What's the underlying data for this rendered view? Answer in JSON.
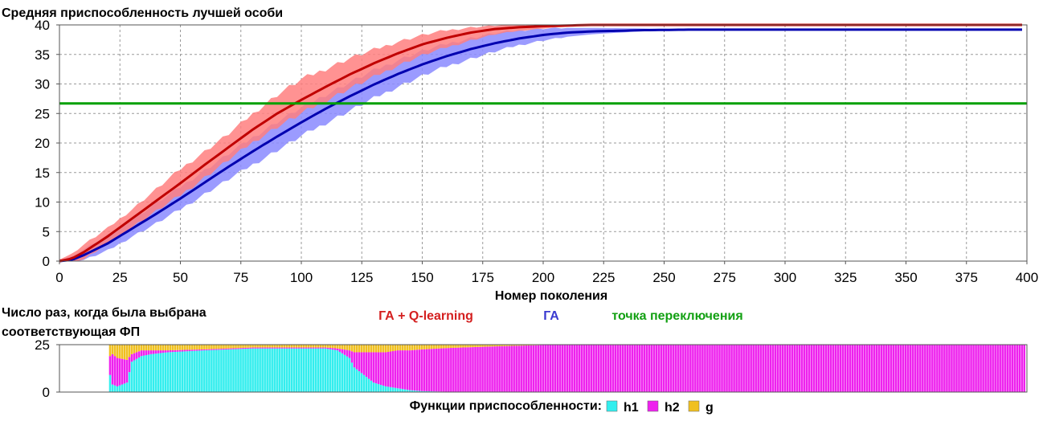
{
  "colors": {
    "ga_q": "#c00000",
    "ga_q_band": "#ff7f7f",
    "ga": "#0000b0",
    "ga_band": "#8a8aff",
    "switch": "#00a000",
    "h1": "#33eeee",
    "h2": "#ee22ee",
    "g": "#f0c020"
  },
  "chart_data": [
    {
      "type": "line",
      "title": "Средняя приспособленность лучшей особи",
      "xlabel": "Номер поколения",
      "ylabel": "",
      "xlim": [
        0,
        400
      ],
      "ylim": [
        0,
        40
      ],
      "x_ticks": [
        0,
        25,
        50,
        75,
        100,
        125,
        150,
        175,
        200,
        225,
        250,
        275,
        300,
        325,
        350,
        375,
        400
      ],
      "y_ticks": [
        0,
        5,
        10,
        15,
        20,
        25,
        30,
        35,
        40
      ],
      "grid": true,
      "series": [
        {
          "name": "ГА + Q-learning",
          "x": [
            0,
            5,
            10,
            20,
            30,
            40,
            50,
            60,
            70,
            80,
            90,
            100,
            110,
            120,
            130,
            140,
            150,
            160,
            170,
            180,
            190,
            200,
            210,
            220,
            240,
            260,
            300,
            400
          ],
          "y": [
            0,
            0.4,
            1.5,
            4.2,
            7.2,
            10.2,
            13.2,
            16.3,
            19.3,
            22.3,
            25.0,
            27.3,
            29.5,
            31.6,
            33.5,
            35.2,
            36.7,
            37.8,
            38.7,
            39.3,
            39.6,
            39.8,
            39.9,
            40.0,
            40.0,
            40.0,
            40.0,
            40.0
          ],
          "band_low": [
            0,
            0,
            0.3,
            3.0,
            5.8,
            8.5,
            11.2,
            14.2,
            17.2,
            20.2,
            22.8,
            25.0,
            27.2,
            29.3,
            31.2,
            33.2,
            34.9,
            36.2,
            37.4,
            38.4,
            39.0,
            39.4,
            39.7,
            39.9,
            40.0,
            40.0,
            40.0,
            40.0
          ],
          "band_high": [
            0.3,
            1.2,
            2.8,
            5.6,
            8.8,
            12.2,
            15.6,
            18.6,
            21.6,
            25.0,
            28.2,
            30.8,
            32.6,
            34.4,
            35.8,
            37.2,
            38.3,
            39.1,
            39.6,
            39.9,
            40.0,
            40.0,
            40.0,
            40.0,
            40.0,
            40.0,
            40.0,
            40.0
          ]
        },
        {
          "name": "ГА",
          "x": [
            0,
            5,
            10,
            20,
            30,
            40,
            50,
            60,
            70,
            80,
            90,
            100,
            110,
            120,
            130,
            140,
            150,
            160,
            170,
            180,
            190,
            200,
            210,
            220,
            240,
            260,
            300,
            400
          ],
          "y": [
            0,
            0.2,
            1.0,
            3.0,
            5.5,
            8.0,
            10.6,
            13.3,
            16.0,
            18.6,
            21.1,
            23.5,
            25.8,
            27.9,
            29.9,
            31.7,
            33.3,
            34.7,
            35.9,
            36.9,
            37.7,
            38.3,
            38.7,
            38.9,
            39.1,
            39.2,
            39.2,
            39.2
          ],
          "band_low": [
            0,
            0,
            0.2,
            1.8,
            4.2,
            6.4,
            8.8,
            11.4,
            13.9,
            16.4,
            18.8,
            21.2,
            23.4,
            25.5,
            27.6,
            29.6,
            31.4,
            33.0,
            34.3,
            35.5,
            36.6,
            37.4,
            38.0,
            38.4,
            38.9,
            39.1,
            39.2,
            39.2
          ],
          "band_high": [
            0.2,
            0.8,
            2.0,
            4.4,
            7.0,
            9.8,
            12.6,
            15.4,
            18.2,
            21.0,
            23.6,
            26.0,
            28.2,
            30.3,
            32.3,
            34.1,
            35.6,
            36.8,
            37.8,
            38.6,
            39.1,
            39.4,
            39.5,
            39.5,
            39.4,
            39.3,
            39.2,
            39.2
          ]
        },
        {
          "name": "точка переключения",
          "x": [
            0,
            400
          ],
          "y": [
            26.7,
            26.7
          ]
        }
      ]
    },
    {
      "type": "bar",
      "stacked": true,
      "title": "Число раз, когда была выбрана соответствующая ФП",
      "title_lines": [
        "Число раз, когда была выбрана",
        "соответствующая ФП"
      ],
      "xlim": [
        0,
        400
      ],
      "ylim": [
        0,
        25
      ],
      "y_ticks": [
        0,
        25
      ],
      "x_start": 21,
      "x_end": 399,
      "legend_title": "Функции приспособленности:",
      "series": [
        {
          "name": "h1",
          "x": [
            21,
            22,
            24,
            28,
            30,
            34,
            38,
            45,
            60,
            80,
            100,
            110,
            115,
            120,
            122,
            125,
            128,
            130,
            135,
            140,
            145,
            150,
            160,
            180,
            200,
            399
          ],
          "values": [
            9,
            4,
            3,
            5,
            16,
            19,
            20,
            21,
            22,
            23,
            23,
            23,
            22,
            18,
            13,
            10,
            7,
            5,
            3,
            2,
            1,
            0.5,
            0.2,
            0.1,
            0,
            0
          ]
        },
        {
          "name": "h2",
          "x": [
            21,
            22,
            24,
            28,
            30,
            34,
            38,
            45,
            60,
            80,
            100,
            110,
            115,
            120,
            122,
            125,
            128,
            130,
            135,
            140,
            145,
            150,
            160,
            180,
            200,
            399
          ],
          "values": [
            10,
            16,
            15,
            12,
            4,
            3,
            2,
            1,
            0.5,
            0.5,
            0.5,
            0.5,
            1,
            4,
            8,
            11,
            14,
            16,
            18,
            20,
            21,
            22,
            23,
            24,
            24.8,
            25
          ]
        },
        {
          "name": "g",
          "x": [
            21,
            22,
            24,
            28,
            30,
            34,
            38,
            45,
            60,
            80,
            100,
            110,
            115,
            120,
            122,
            125,
            128,
            130,
            135,
            140,
            145,
            150,
            160,
            180,
            200,
            399
          ],
          "values": [
            6,
            5,
            7,
            8,
            5,
            3,
            3,
            3,
            2.5,
            1.5,
            1.5,
            1.5,
            2,
            3,
            4,
            4,
            4,
            4,
            4,
            3,
            3,
            2.5,
            1.8,
            0.9,
            0.2,
            0
          ]
        }
      ]
    }
  ]
}
